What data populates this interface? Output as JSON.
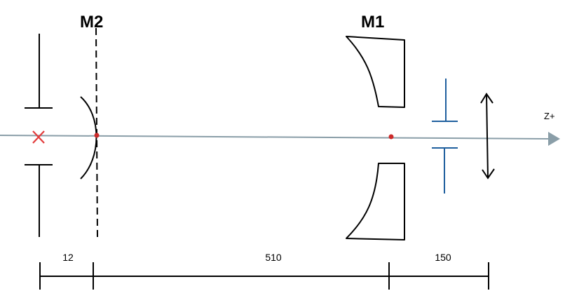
{
  "labels": {
    "mirror_secondary": "M2",
    "mirror_primary": "M1",
    "axis": "Z+"
  },
  "dimensions": [
    {
      "id": "source-to-m2",
      "value": "12"
    },
    {
      "id": "m2-to-m1",
      "value": "510"
    },
    {
      "id": "m1-to-lens",
      "value": "150"
    }
  ],
  "colors": {
    "optical_axis": "#8a9ea8",
    "source_marker": "#e23b3b",
    "vertex_dot": "#cc2a2a",
    "aperture_stop": "#1f5f9e",
    "ink": "#000000"
  },
  "icons": {
    "source": "x-mark-icon",
    "lens": "double-arrow-icon"
  }
}
